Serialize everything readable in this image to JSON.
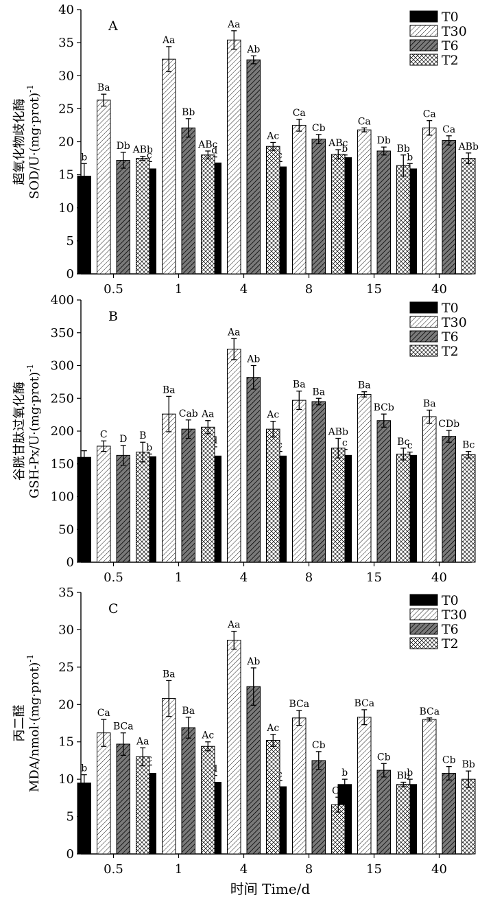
{
  "figure": {
    "shared_xlabel": "时间 Time/d",
    "series_styles": [
      {
        "name": "T0",
        "pattern": "solid-black"
      },
      {
        "name": "T30",
        "pattern": "light-diagonal-hatch"
      },
      {
        "name": "T6",
        "pattern": "dark-diagonal-hatch"
      },
      {
        "name": "T2",
        "pattern": "crosshatch"
      }
    ]
  },
  "chart_data": [
    {
      "type": "bar",
      "panel_label": "A",
      "ylabel_cn": "超氧化物歧化酶",
      "ylabel_en": "SOD/U·(mg·prot)",
      "ylabel_sup": "-1",
      "categories": [
        "0.5",
        "1",
        "4",
        "8",
        "15",
        "40"
      ],
      "ylim": [
        0,
        40
      ],
      "yticks": [
        0,
        5,
        10,
        15,
        20,
        25,
        30,
        35,
        40
      ],
      "legend_position": "top-right",
      "series": [
        {
          "name": "T0",
          "values": [
            14.8,
            15.9,
            16.8,
            16.2,
            17.6,
            15.9
          ],
          "errors": [
            1.9,
            1.1,
            0.9,
            0.8,
            0.4,
            0.8
          ],
          "labels": [
            "b",
            "c",
            "d",
            "c",
            "b",
            "b"
          ]
        },
        {
          "name": "T30",
          "values": [
            26.3,
            32.5,
            35.4,
            22.5,
            21.8,
            22.1
          ],
          "errors": [
            0.9,
            1.9,
            1.4,
            0.9,
            0.3,
            1.1
          ],
          "labels": [
            "Ba",
            "Aa",
            "Aa",
            "Ca",
            "Ca",
            "Ca"
          ]
        },
        {
          "name": "T6",
          "values": [
            17.2,
            22.1,
            32.4,
            20.4,
            18.6,
            20.2
          ],
          "errors": [
            1.2,
            1.4,
            0.6,
            0.7,
            0.6,
            0.7
          ],
          "labels": [
            "Db",
            "Bb",
            "Ab",
            "Cb",
            "Db",
            "Ca"
          ]
        },
        {
          "name": "T2",
          "values": [
            17.5,
            18.0,
            19.3,
            18.1,
            16.4,
            17.5
          ],
          "errors": [
            0.3,
            0.6,
            0.6,
            0.7,
            1.6,
            0.8
          ],
          "labels": [
            "ABb",
            "ABc",
            "Ac",
            "ABc",
            "Bb",
            "ABb"
          ]
        }
      ]
    },
    {
      "type": "bar",
      "panel_label": "B",
      "ylabel_cn": "谷胱甘肽过氧化酶",
      "ylabel_en": "GSH-Px/U·(mg·prot)",
      "ylabel_sup": "-1",
      "categories": [
        "0.5",
        "1",
        "4",
        "8",
        "15",
        "40"
      ],
      "ylim": [
        0,
        400
      ],
      "yticks": [
        0,
        50,
        100,
        150,
        200,
        250,
        300,
        350,
        400
      ],
      "legend_position": "top-right",
      "series": [
        {
          "name": "T0",
          "values": [
            160,
            161,
            162,
            162,
            163,
            163
          ],
          "errors": [
            10,
            4,
            14,
            7,
            9,
            5
          ],
          "labels": [
            "",
            "b",
            "d",
            "c",
            "c",
            "c"
          ]
        },
        {
          "name": "T30",
          "values": [
            177,
            226,
            325,
            247,
            256,
            222
          ],
          "errors": [
            8,
            27,
            16,
            14,
            4,
            10
          ],
          "labels": [
            "C",
            "Ba",
            "Aa",
            "Ba",
            "Ba",
            "Ba"
          ]
        },
        {
          "name": "T6",
          "values": [
            163,
            203,
            282,
            245,
            216,
            192
          ],
          "errors": [
            15,
            14,
            18,
            5,
            10,
            9
          ],
          "labels": [
            "D",
            "Cab",
            "Ab",
            "Ba",
            "BCb",
            "CDb"
          ]
        },
        {
          "name": "T2",
          "values": [
            168,
            206,
            203,
            174,
            165,
            164
          ],
          "errors": [
            15,
            10,
            12,
            15,
            9,
            5
          ],
          "labels": [
            "B",
            "Aa",
            "Ac",
            "ABb",
            "Bc",
            "Bc"
          ]
        }
      ]
    },
    {
      "type": "bar",
      "panel_label": "C",
      "ylabel_cn": "丙二醛",
      "ylabel_en": "MDA/nmol·(mg·prot)",
      "ylabel_sup": "-1",
      "xlabel": "时间 Time/d",
      "categories": [
        "0.5",
        "1",
        "4",
        "8",
        "15",
        "40"
      ],
      "ylim": [
        0,
        35
      ],
      "yticks": [
        0,
        5,
        10,
        15,
        20,
        25,
        30,
        35
      ],
      "legend_position": "top-right",
      "series": [
        {
          "name": "T0",
          "values": [
            9.5,
            10.8,
            9.6,
            9.0,
            9.3,
            9.3
          ],
          "errors": [
            1.1,
            1.1,
            0.9,
            0.8,
            0.7,
            0.7
          ],
          "labels": [
            "b",
            "c",
            "d",
            "c",
            "b",
            "b"
          ]
        },
        {
          "name": "T30",
          "values": [
            16.2,
            20.8,
            28.6,
            18.2,
            18.3,
            18.0
          ],
          "errors": [
            1.8,
            2.4,
            1.2,
            1.0,
            1.0,
            0.2
          ],
          "labels": [
            "Ca",
            "Ba",
            "Aa",
            "BCa",
            "BCa",
            "BCa"
          ]
        },
        {
          "name": "T6",
          "values": [
            14.7,
            16.9,
            22.4,
            12.5,
            11.2,
            10.8
          ],
          "errors": [
            1.5,
            1.4,
            2.5,
            1.2,
            0.9,
            0.9
          ],
          "labels": [
            "BCa",
            "Ba",
            "Ab",
            "Cb",
            "Cb",
            "Cb"
          ]
        },
        {
          "name": "T2",
          "values": [
            13.0,
            14.4,
            15.2,
            6.6,
            9.3,
            10.0
          ],
          "errors": [
            1.2,
            0.6,
            0.8,
            1.0,
            0.3,
            1.1
          ],
          "labels": [
            "Aa",
            "Ac",
            "Ac",
            "Cc",
            "Bb",
            "Bb"
          ]
        }
      ]
    }
  ]
}
